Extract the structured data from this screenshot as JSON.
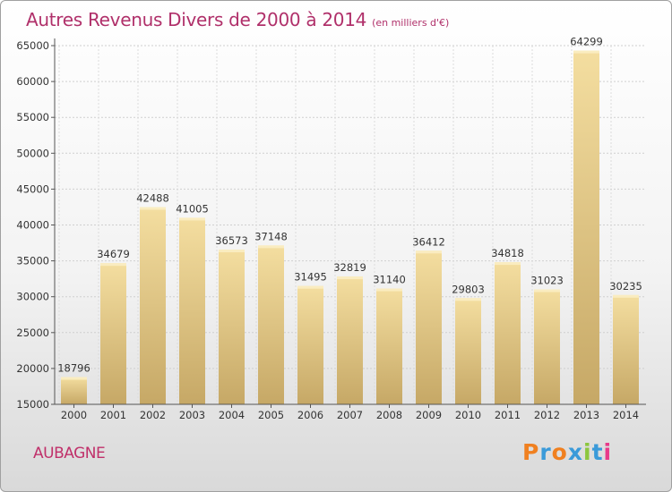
{
  "header": {
    "title": "Autres Revenus Divers de 2000 à 2014",
    "subtitle": "(en milliers d'€)"
  },
  "footer": {
    "city": "AUBAGNE",
    "logo": [
      "P",
      "r",
      "o",
      "x",
      "i",
      "t",
      "i"
    ]
  },
  "colors": {
    "title": "#b0306a",
    "bar_top": "#f4dea0",
    "bar_bottom": "#c6a866",
    "logo": [
      "#f08020",
      "#3a9ad9",
      "#f08020",
      "#3a9ad9",
      "#8cc63f",
      "#3a9ad9",
      "#e83a8a"
    ]
  },
  "chart_data": {
    "type": "bar",
    "title": "Autres Revenus Divers de 2000 à 2014",
    "subtitle": "(en milliers d'€)",
    "categories": [
      "2000",
      "2001",
      "2002",
      "2003",
      "2004",
      "2005",
      "2006",
      "2007",
      "2008",
      "2009",
      "2010",
      "2011",
      "2012",
      "2013",
      "2014"
    ],
    "values": [
      18796,
      34679,
      42488,
      41005,
      36573,
      37148,
      31495,
      32819,
      31140,
      36412,
      29803,
      34818,
      31023,
      64299,
      30235
    ],
    "ylim": [
      15000,
      65000
    ],
    "yticks": [
      15000,
      20000,
      25000,
      30000,
      35000,
      40000,
      45000,
      50000,
      55000,
      60000,
      65000
    ],
    "grid": true,
    "data_labels": true
  }
}
